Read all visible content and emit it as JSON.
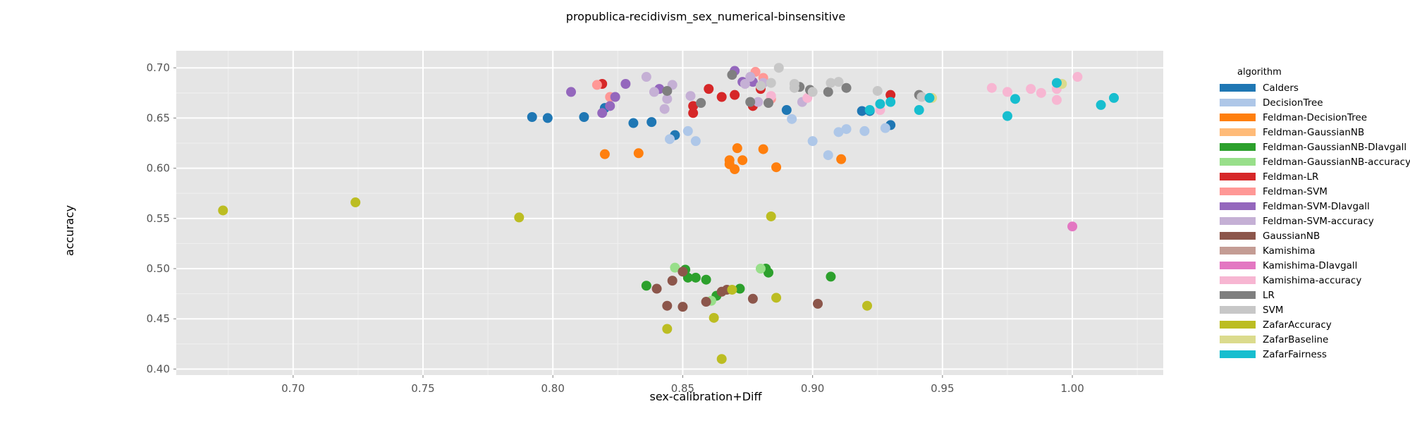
{
  "chart_data": {
    "type": "scatter",
    "title": "propublica-recidivism_sex_numerical-binsensitive",
    "xlabel": "sex-calibration+Diff",
    "ylabel": "accuracy",
    "xlim": [
      0.655,
      1.035
    ],
    "ylim": [
      0.394,
      0.717
    ],
    "x_ticks": [
      0.7,
      0.75,
      0.8,
      0.85,
      0.9,
      0.95,
      1.0
    ],
    "x_tick_labels": [
      "0.70",
      "0.75",
      "0.80",
      "0.85",
      "0.90",
      "0.95",
      "1.00"
    ],
    "y_ticks": [
      0.4,
      0.45,
      0.5,
      0.55,
      0.6,
      0.65,
      0.7
    ],
    "y_tick_labels": [
      "0.40",
      "0.45",
      "0.50",
      "0.55",
      "0.60",
      "0.65",
      "0.70"
    ],
    "grid": true,
    "legend_title": "algorithm",
    "legend_position": "right",
    "series": [
      {
        "name": "Calders",
        "color": "#1f77b4",
        "points": [
          [
            0.792,
            0.651
          ],
          [
            0.798,
            0.65
          ],
          [
            0.812,
            0.651
          ],
          [
            0.82,
            0.66
          ],
          [
            0.831,
            0.645
          ],
          [
            0.838,
            0.646
          ],
          [
            0.847,
            0.633
          ],
          [
            0.89,
            0.658
          ],
          [
            0.919,
            0.657
          ],
          [
            0.922,
            0.657
          ],
          [
            0.93,
            0.643
          ]
        ]
      },
      {
        "name": "DecisionTree",
        "color": "#aec7e8",
        "points": [
          [
            0.845,
            0.629
          ],
          [
            0.852,
            0.637
          ],
          [
            0.855,
            0.627
          ],
          [
            0.892,
            0.649
          ],
          [
            0.9,
            0.627
          ],
          [
            0.906,
            0.613
          ],
          [
            0.91,
            0.636
          ],
          [
            0.913,
            0.639
          ],
          [
            0.92,
            0.637
          ],
          [
            0.928,
            0.64
          ]
        ]
      },
      {
        "name": "Feldman-DecisionTree",
        "color": "#ff7f0e",
        "points": [
          [
            0.82,
            0.614
          ],
          [
            0.833,
            0.615
          ],
          [
            0.868,
            0.608
          ],
          [
            0.868,
            0.604
          ],
          [
            0.87,
            0.599
          ],
          [
            0.871,
            0.62
          ],
          [
            0.873,
            0.608
          ],
          [
            0.881,
            0.619
          ],
          [
            0.886,
            0.601
          ],
          [
            0.911,
            0.609
          ]
        ]
      },
      {
        "name": "Feldman-GaussianNB",
        "color": "#ffbb78",
        "points": []
      },
      {
        "name": "Feldman-GaussianNB-DIavgall",
        "color": "#2ca02c",
        "points": [
          [
            0.836,
            0.483
          ],
          [
            0.851,
            0.499
          ],
          [
            0.852,
            0.491
          ],
          [
            0.855,
            0.491
          ],
          [
            0.859,
            0.489
          ],
          [
            0.863,
            0.473
          ],
          [
            0.872,
            0.48
          ],
          [
            0.882,
            0.5
          ],
          [
            0.883,
            0.496
          ],
          [
            0.907,
            0.492
          ]
        ]
      },
      {
        "name": "Feldman-GaussianNB-accuracy",
        "color": "#98df8a",
        "points": [
          [
            0.847,
            0.501
          ],
          [
            0.861,
            0.468
          ],
          [
            0.88,
            0.5
          ]
        ]
      },
      {
        "name": "Feldman-LR",
        "color": "#d62728",
        "points": [
          [
            0.819,
            0.684
          ],
          [
            0.854,
            0.662
          ],
          [
            0.854,
            0.655
          ],
          [
            0.86,
            0.679
          ],
          [
            0.865,
            0.671
          ],
          [
            0.87,
            0.673
          ],
          [
            0.877,
            0.662
          ],
          [
            0.88,
            0.679
          ],
          [
            0.93,
            0.673
          ]
        ]
      },
      {
        "name": "Feldman-SVM",
        "color": "#ff9896",
        "points": [
          [
            0.817,
            0.683
          ],
          [
            0.822,
            0.671
          ],
          [
            0.878,
            0.696
          ],
          [
            0.881,
            0.69
          ],
          [
            0.884,
            0.669
          ]
        ]
      },
      {
        "name": "Feldman-SVM-DIavgall",
        "color": "#9467bd",
        "points": [
          [
            0.807,
            0.676
          ],
          [
            0.819,
            0.655
          ],
          [
            0.822,
            0.662
          ],
          [
            0.824,
            0.671
          ],
          [
            0.828,
            0.684
          ],
          [
            0.841,
            0.679
          ],
          [
            0.87,
            0.697
          ],
          [
            0.873,
            0.686
          ],
          [
            0.877,
            0.686
          ]
        ]
      },
      {
        "name": "Feldman-SVM-accuracy",
        "color": "#c5b0d5",
        "points": [
          [
            0.836,
            0.691
          ],
          [
            0.839,
            0.676
          ],
          [
            0.843,
            0.659
          ],
          [
            0.844,
            0.669
          ],
          [
            0.846,
            0.683
          ],
          [
            0.853,
            0.672
          ],
          [
            0.874,
            0.684
          ],
          [
            0.876,
            0.691
          ],
          [
            0.879,
            0.666
          ],
          [
            0.881,
            0.685
          ],
          [
            0.896,
            0.666
          ]
        ]
      },
      {
        "name": "GaussianNB",
        "color": "#8c564b",
        "points": [
          [
            0.84,
            0.48
          ],
          [
            0.844,
            0.463
          ],
          [
            0.846,
            0.488
          ],
          [
            0.85,
            0.497
          ],
          [
            0.85,
            0.462
          ],
          [
            0.859,
            0.467
          ],
          [
            0.865,
            0.477
          ],
          [
            0.867,
            0.479
          ],
          [
            0.877,
            0.47
          ],
          [
            0.902,
            0.465
          ]
        ]
      },
      {
        "name": "Kamishima",
        "color": "#c49c94",
        "points": []
      },
      {
        "name": "Kamishima-DIavgall",
        "color": "#e377c2",
        "points": [
          [
            1.0,
            0.542
          ]
        ]
      },
      {
        "name": "Kamishima-accuracy",
        "color": "#f7b6d2",
        "points": [
          [
            0.884,
            0.672
          ],
          [
            0.898,
            0.67
          ],
          [
            0.926,
            0.658
          ],
          [
            0.969,
            0.68
          ],
          [
            0.975,
            0.676
          ],
          [
            0.984,
            0.679
          ],
          [
            0.988,
            0.675
          ],
          [
            0.994,
            0.679
          ],
          [
            0.994,
            0.668
          ],
          [
            1.002,
            0.691
          ]
        ]
      },
      {
        "name": "LR",
        "color": "#7f7f7f",
        "points": [
          [
            0.844,
            0.677
          ],
          [
            0.857,
            0.665
          ],
          [
            0.869,
            0.693
          ],
          [
            0.876,
            0.666
          ],
          [
            0.883,
            0.665
          ],
          [
            0.895,
            0.681
          ],
          [
            0.899,
            0.678
          ],
          [
            0.906,
            0.676
          ],
          [
            0.913,
            0.68
          ],
          [
            0.941,
            0.673
          ]
        ]
      },
      {
        "name": "SVM",
        "color": "#c7c7c7",
        "points": [
          [
            0.88,
            0.682
          ],
          [
            0.884,
            0.685
          ],
          [
            0.887,
            0.7
          ],
          [
            0.893,
            0.684
          ],
          [
            0.893,
            0.68
          ],
          [
            0.9,
            0.676
          ],
          [
            0.907,
            0.685
          ],
          [
            0.91,
            0.686
          ],
          [
            0.925,
            0.677
          ],
          [
            0.942,
            0.671
          ]
        ]
      },
      {
        "name": "ZafarAccuracy",
        "color": "#bcbd22",
        "points": [
          [
            0.673,
            0.558
          ],
          [
            0.724,
            0.566
          ],
          [
            0.787,
            0.551
          ],
          [
            0.844,
            0.44
          ],
          [
            0.862,
            0.451
          ],
          [
            0.865,
            0.41
          ],
          [
            0.869,
            0.479
          ],
          [
            0.884,
            0.552
          ],
          [
            0.886,
            0.471
          ],
          [
            0.921,
            0.463
          ]
        ]
      },
      {
        "name": "ZafarBaseline",
        "color": "#dbdb8d",
        "points": [
          [
            0.946,
            0.67
          ],
          [
            0.996,
            0.684
          ]
        ]
      },
      {
        "name": "ZafarFairness",
        "color": "#17becf",
        "points": [
          [
            0.922,
            0.658
          ],
          [
            0.926,
            0.664
          ],
          [
            0.93,
            0.666
          ],
          [
            0.941,
            0.658
          ],
          [
            0.945,
            0.67
          ],
          [
            0.975,
            0.652
          ],
          [
            0.978,
            0.669
          ],
          [
            0.994,
            0.685
          ],
          [
            1.011,
            0.663
          ],
          [
            1.016,
            0.67
          ]
        ]
      }
    ]
  }
}
